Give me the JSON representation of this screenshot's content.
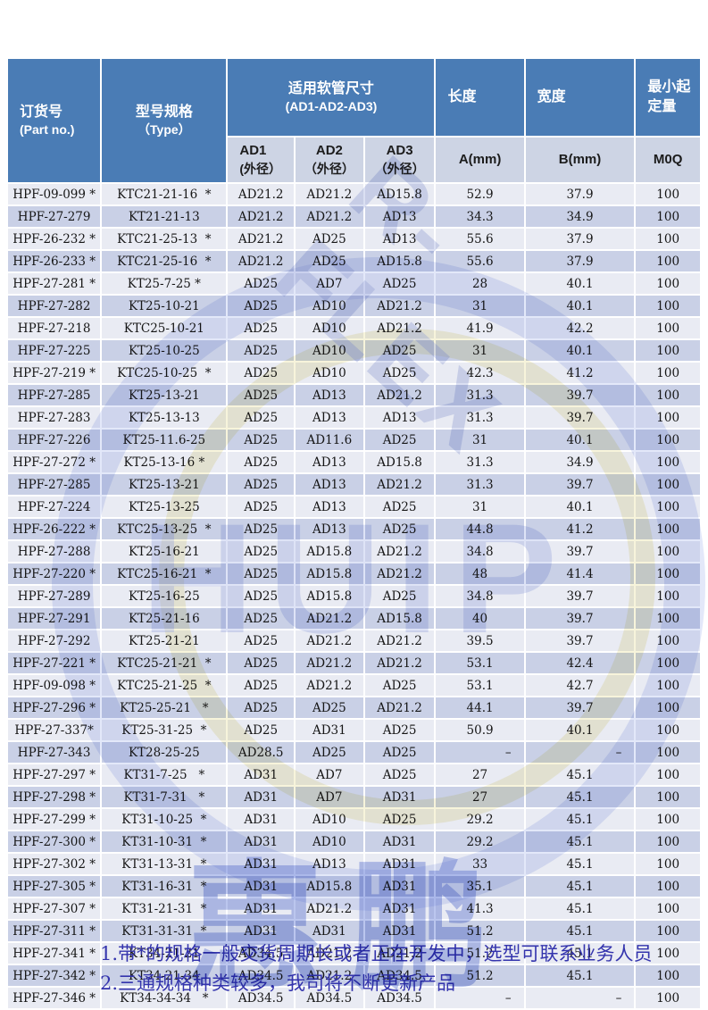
{
  "table": {
    "header": {
      "part_no": {
        "line1": "订货号",
        "line2": "(Part no.)"
      },
      "type": {
        "line1": "型号规格",
        "line2": "（Type）"
      },
      "hose": {
        "line1": "适用软管尺寸",
        "line2": "(AD1-AD2-AD3)"
      },
      "length": "长度",
      "width": "宽度",
      "moq": "最小起定量",
      "sub_ad1": {
        "line1": "AD1",
        "line2": "(外径）"
      },
      "sub_ad2": {
        "line1": "AD2",
        "line2": "（外径）"
      },
      "sub_ad3": {
        "line1": "AD3",
        "line2": "（外径）"
      },
      "sub_length": "A(mm)",
      "sub_width": "B(mm)",
      "sub_moq": "M0Q"
    },
    "rows": [
      [
        "HPF-09-099 *",
        "KTC21-21-16  *",
        "AD21.2",
        "AD21.2",
        "AD15.8",
        "52.9",
        "37.9",
        "100"
      ],
      [
        "HPF-27-279",
        "KT21-21-13",
        "AD21.2",
        "AD21.2",
        "AD13",
        "34.3",
        "34.9",
        "100"
      ],
      [
        "HPF-26-232 *",
        "KTC21-25-13  *",
        "AD21.2",
        "AD25",
        "AD13",
        "55.6",
        "37.9",
        "100"
      ],
      [
        "HPF-26-233 *",
        "KTC21-25-16  *",
        "AD21.2",
        "AD25",
        "AD15.8",
        "55.6",
        "37.9",
        "100"
      ],
      [
        "HPF-27-281 *",
        "KT25-7-25 *",
        "AD25",
        "AD7",
        "AD25",
        "28",
        "40.1",
        "100"
      ],
      [
        "HPF-27-282",
        "KT25-10-21",
        "AD25",
        "AD10",
        "AD21.2",
        "31",
        "40.1",
        "100"
      ],
      [
        "HPF-27-218",
        "KTC25-10-21",
        "AD25",
        "AD10",
        "AD21.2",
        "41.9",
        "42.2",
        "100"
      ],
      [
        "HPF-27-225",
        "KT25-10-25",
        "AD25",
        "AD10",
        "AD25",
        "31",
        "40.1",
        "100"
      ],
      [
        "HPF-27-219 *",
        "KTC25-10-25  *",
        "AD25",
        "AD10",
        "AD25",
        "42.3",
        "41.2",
        "100"
      ],
      [
        "HPF-27-285",
        "KT25-13-21",
        "AD25",
        "AD13",
        "AD21.2",
        "31.3",
        "39.7",
        "100"
      ],
      [
        "HPF-27-283",
        "KT25-13-13",
        "AD25",
        "AD13",
        "AD13",
        "31.3",
        "39.7",
        "100"
      ],
      [
        "HPF-27-226",
        "KT25-11.6-25",
        "AD25",
        "AD11.6",
        "AD25",
        "31",
        "40.1",
        "100"
      ],
      [
        "HPF-27-272 *",
        "KT25-13-16 *",
        "AD25",
        "AD13",
        "AD15.8",
        "31.3",
        "34.9",
        "100"
      ],
      [
        "HPF-27-285",
        "KT25-13-21",
        "AD25",
        "AD13",
        "AD21.2",
        "31.3",
        "39.7",
        "100"
      ],
      [
        "HPF-27-224",
        "KT25-13-25",
        "AD25",
        "AD13",
        "AD25",
        "31",
        "40.1",
        "100"
      ],
      [
        "HPF-26-222 *",
        "KTC25-13-25  *",
        "AD25",
        "AD13",
        "AD25",
        "44.8",
        "41.2",
        "100"
      ],
      [
        "HPF-27-288",
        "KT25-16-21",
        "AD25",
        "AD15.8",
        "AD21.2",
        "34.8",
        "39.7",
        "100"
      ],
      [
        "HPF-27-220 *",
        "KTC25-16-21  *",
        "AD25",
        "AD15.8",
        "AD21.2",
        "48",
        "41.4",
        "100"
      ],
      [
        "HPF-27-289",
        "KT25-16-25",
        "AD25",
        "AD15.8",
        "AD25",
        "34.8",
        "39.7",
        "100"
      ],
      [
        "HPF-27-291",
        "KT25-21-16",
        "AD25",
        "AD21.2",
        "AD15.8",
        "40",
        "39.7",
        "100"
      ],
      [
        "HPF-27-292",
        "KT25-21-21",
        "AD25",
        "AD21.2",
        "AD21.2",
        "39.5",
        "39.7",
        "100"
      ],
      [
        "HPF-27-221 *",
        "KTC25-21-21  *",
        "AD25",
        "AD21.2",
        "AD21.2",
        "53.1",
        "42.4",
        "100"
      ],
      [
        "HPF-09-098 *",
        "KTC25-21-25  *",
        "AD25",
        "AD21.2",
        "AD25",
        "53.1",
        "42.7",
        "100"
      ],
      [
        "HPF-27-296 *",
        "KT25-25-21   *",
        "AD25",
        "AD25",
        "AD21.2",
        "44.1",
        "39.7",
        "100"
      ],
      [
        "HPF-27-337*",
        "KT25-31-25  *",
        "AD25",
        "AD31",
        "AD25",
        "50.9",
        "40.1",
        "100"
      ],
      [
        "HPF-27-343",
        "KT28-25-25",
        "AD28.5",
        "AD25",
        "AD25",
        "–",
        "–",
        "100"
      ],
      [
        "HPF-27-297 *",
        "KT31-7-25   *",
        "AD31",
        "AD7",
        "AD25",
        "27",
        "45.1",
        "100"
      ],
      [
        "HPF-27-298 *",
        "KT31-7-31   *",
        "AD31",
        "AD7",
        "AD31",
        "27",
        "45.1",
        "100"
      ],
      [
        "HPF-27-299 *",
        "KT31-10-25  *",
        "AD31",
        "AD10",
        "AD25",
        "29.2",
        "45.1",
        "100"
      ],
      [
        "HPF-27-300 *",
        "KT31-10-31  *",
        "AD31",
        "AD10",
        "AD31",
        "29.2",
        "45.1",
        "100"
      ],
      [
        "HPF-27-302 *",
        "KT31-13-31  *",
        "AD31",
        "AD13",
        "AD31",
        "33",
        "45.1",
        "100"
      ],
      [
        "HPF-27-305 *",
        "KT31-16-31  *",
        "AD31",
        "AD15.8",
        "AD31",
        "35.1",
        "45.1",
        "100"
      ],
      [
        "HPF-27-307 *",
        "KT31-21-31  *",
        "AD31",
        "AD21.2",
        "AD31",
        "41.3",
        "45.1",
        "100"
      ],
      [
        "HPF-27-311 *",
        "KT31-31-31  *",
        "AD31",
        "AD31",
        "AD31",
        "51.2",
        "45.1",
        "100"
      ],
      [
        "HPF-27-341 *",
        "KT34-21-21",
        "AD34.5",
        "AD21.2",
        "AD21.2",
        "51.2",
        "45.1",
        "100"
      ],
      [
        "HPF-27-342 *",
        "KT34-21-34",
        "AD34.5",
        "AD21.2",
        "AD34.5",
        "51.2",
        "45.1",
        "100"
      ],
      [
        "HPF-27-346 *",
        "KT34-34-34   *",
        "AD34.5",
        "AD34.5",
        "AD34.5",
        "–",
        "–",
        "100"
      ]
    ]
  },
  "notes": {
    "note1": "1.带*的规格一般交货周期长或者正在开发中，选型可联系业务人员",
    "note2": "2.三通规格种类较多，我司将不断更新产品"
  },
  "watermarks": {
    "diagonal_brand": "R-FLEX",
    "center_brand": "HUIP",
    "cn_char_1": "惠",
    "cn_char_2": "鹏"
  },
  "colors": {
    "header_bg": "#4a7cb5",
    "subheader_bg": "#cdd4e4",
    "row_light": "#e9ebf3",
    "row_dark": "#c9d0e6",
    "note_text": "#3434ad"
  }
}
